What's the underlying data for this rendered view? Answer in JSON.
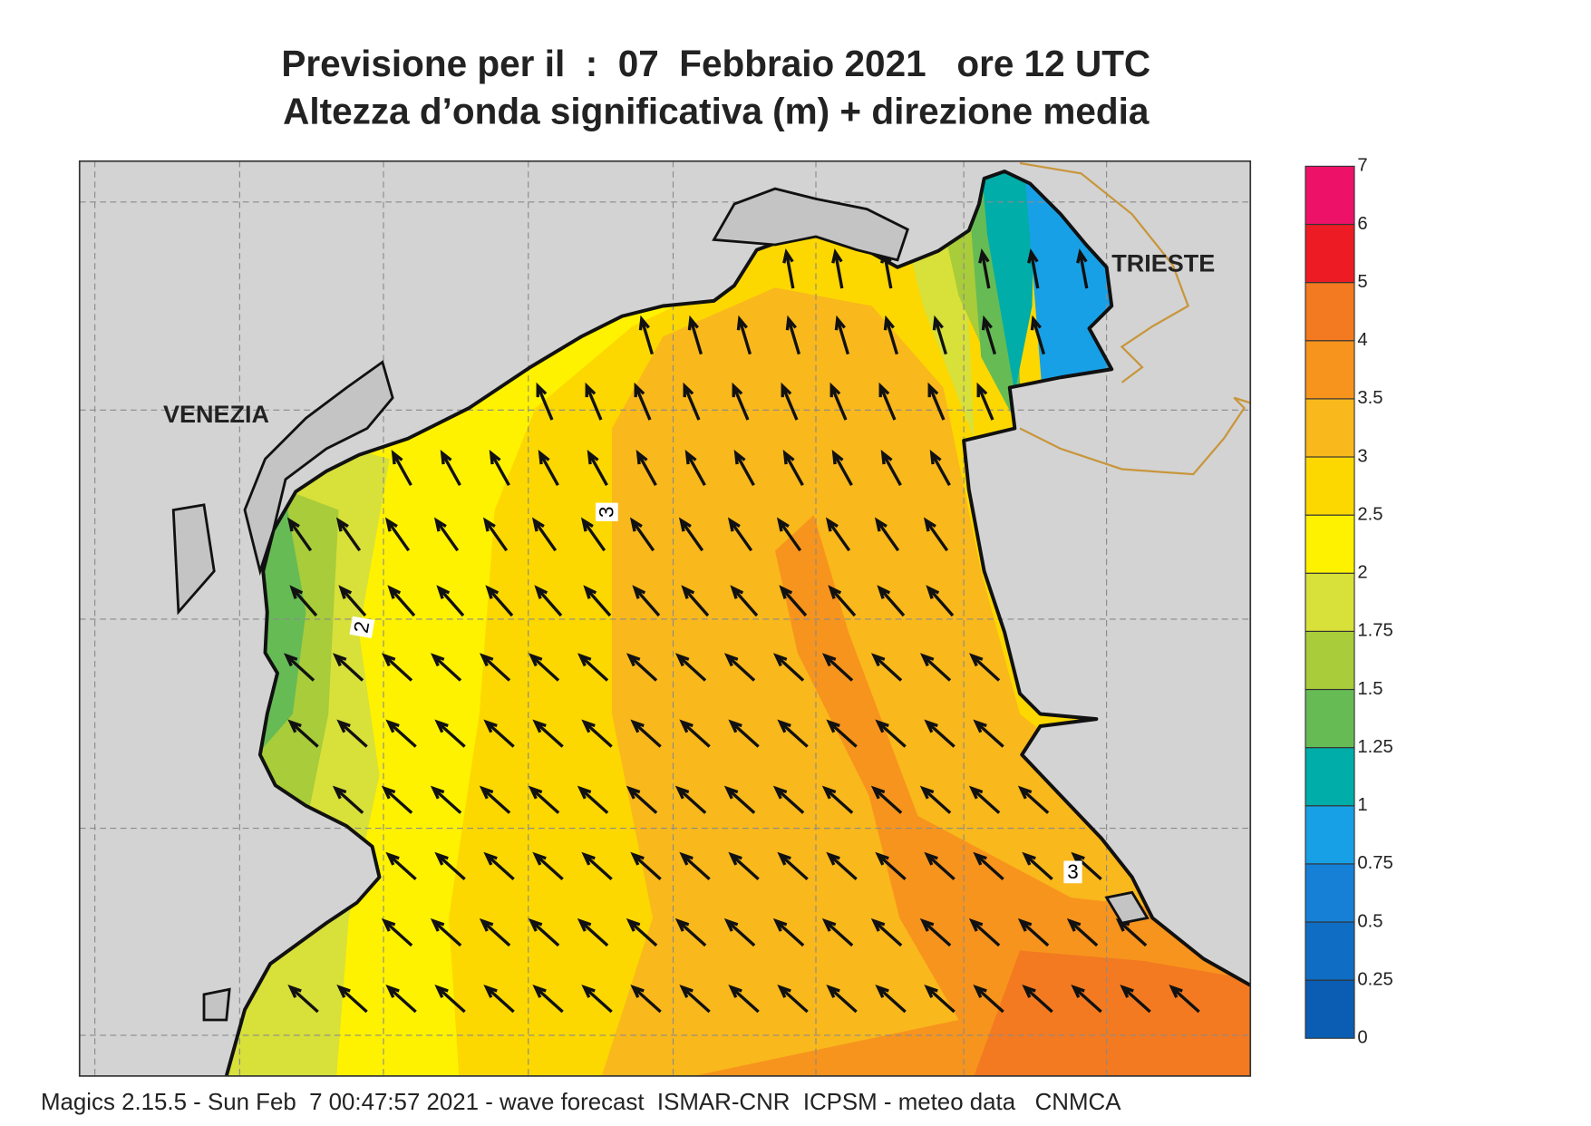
{
  "header": {
    "title_line1": "Previsione per il  :  07  Febbraio 2021   ore 12 UTC",
    "title_line2": "Altezza d’onda significativa (m) + direzione media"
  },
  "map": {
    "cities": [
      "VENEZIA",
      "TRIESTE"
    ],
    "contour_labels": [
      "3",
      "2",
      "3"
    ]
  },
  "legend": {
    "levels": [
      0,
      0.25,
      0.5,
      0.75,
      1,
      1.25,
      1.5,
      1.75,
      2,
      2.5,
      3,
      3.5,
      4,
      5,
      6,
      7
    ],
    "colors": [
      "#0a5db3",
      "#0f6dc4",
      "#1580d6",
      "#18a0e6",
      "#00ada8",
      "#66bb55",
      "#a8cc3a",
      "#d8e03a",
      "#fff200",
      "#fcd800",
      "#f9b81c",
      "#f7941d",
      "#f37a21",
      "#ed1c24",
      "#ee1168"
    ]
  },
  "footer": "Magics 2.15.5 - Sun Feb  7 00:47:57 2021 - wave forecast  ISMAR-CNR  ICPSM - meteo data   CNMCA"
}
